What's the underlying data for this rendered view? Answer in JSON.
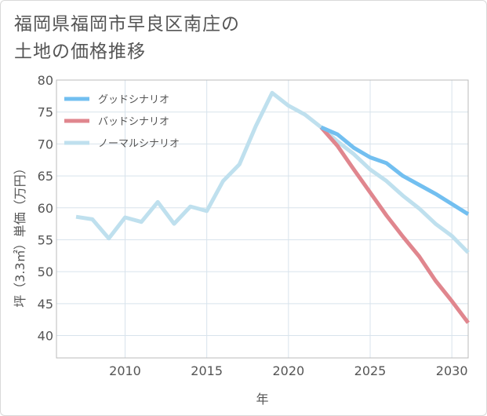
{
  "chart_data": {
    "type": "line",
    "title_lines": [
      "福岡県福岡市早良区南庄の",
      "土地の価格推移"
    ],
    "xlabel": "年",
    "ylabel": "坪（3.3㎡）単価（万円）",
    "xlim": [
      2005.8,
      2031
    ],
    "ylim": [
      36.5,
      80
    ],
    "xticks": [
      2010,
      2015,
      2020,
      2025,
      2030
    ],
    "yticks": [
      40,
      45,
      50,
      55,
      60,
      65,
      70,
      75,
      80
    ],
    "grid": true,
    "legend_position": "top-left",
    "series": [
      {
        "name": "グッドシナリオ",
        "color": "#72bff0",
        "x": [
          2022,
          2023,
          2024,
          2025,
          2026,
          2027,
          2028,
          2029,
          2030,
          2031
        ],
        "y": [
          72.6,
          71.5,
          69.4,
          67.9,
          67.0,
          65.0,
          63.6,
          62.2,
          60.6,
          59.0
        ]
      },
      {
        "name": "バッドシナリオ",
        "color": "#e0868e",
        "x": [
          2022,
          2023,
          2024,
          2025,
          2026,
          2027,
          2028,
          2029,
          2030,
          2031
        ],
        "y": [
          72.6,
          69.7,
          66.0,
          62.4,
          58.8,
          55.5,
          52.4,
          48.6,
          45.4,
          42.0
        ]
      },
      {
        "name": "ノーマルシナリオ",
        "color": "#bfe0ee",
        "x": [
          2007,
          2008,
          2009,
          2010,
          2011,
          2012,
          2013,
          2014,
          2015,
          2016,
          2017,
          2018,
          2019,
          2020,
          2021,
          2022,
          2023,
          2024,
          2025,
          2026,
          2027,
          2028,
          2029,
          2030,
          2031
        ],
        "y": [
          58.6,
          58.2,
          55.2,
          58.5,
          57.8,
          60.9,
          57.5,
          60.2,
          59.5,
          64.2,
          66.8,
          72.8,
          78.0,
          76.0,
          74.6,
          72.6,
          70.4,
          68.4,
          66.0,
          64.2,
          61.9,
          59.9,
          57.5,
          55.6,
          53.0
        ]
      }
    ]
  }
}
